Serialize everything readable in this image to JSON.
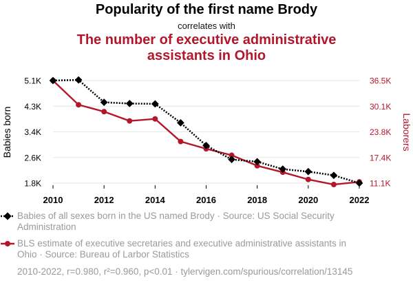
{
  "header": {
    "title": "Popularity of the first name Brody",
    "correlates": "correlates with",
    "title2_line1": "The number of executive administrative",
    "title2_line2": "assistants in Ohio"
  },
  "colors": {
    "series1": "#000000",
    "series2": "#b4162b",
    "grid": "#e6e6e6",
    "legend_text": "#9a9a9a"
  },
  "chart_data": {
    "type": "line",
    "x": [
      2010,
      2011,
      2012,
      2013,
      2014,
      2015,
      2016,
      2017,
      2018,
      2019,
      2020,
      2021,
      2022
    ],
    "xlim": [
      2010,
      2022
    ],
    "x_ticks": [
      "2010",
      "2012",
      "2014",
      "2016",
      "2018",
      "2020",
      "2022"
    ],
    "y_left": {
      "label": "Babies born",
      "ylim": [
        1800,
        5100
      ],
      "ticks": [
        "5.1K",
        "4.3K",
        "3.4K",
        "2.6K",
        "1.8K"
      ]
    },
    "y_right": {
      "label": "Laborers",
      "ylim": [
        11100,
        36500
      ],
      "ticks": [
        "36.5K",
        "30.1K",
        "23.8K",
        "17.4K",
        "11.1K"
      ]
    },
    "series": [
      {
        "name": "Babies of all sexes born in the US named Brody",
        "axis": "left",
        "marker": "diamond",
        "style": "dotted",
        "values": [
          5100,
          5120,
          4400,
          4360,
          4350,
          3740,
          3010,
          2560,
          2490,
          2250,
          2170,
          2050,
          1800
        ]
      },
      {
        "name": "BLS estimate of executive secretaries and executive administrative assistants in Ohio",
        "axis": "right",
        "marker": "circle",
        "style": "solid",
        "values": [
          36500,
          30500,
          28800,
          26500,
          27000,
          21400,
          19600,
          18000,
          15400,
          13800,
          12000,
          10750,
          11400
        ]
      }
    ]
  },
  "legend": {
    "item1_line1": "Babies of all sexes born in the US named Brody · Source: US Social Security",
    "item1_line2": "Administration",
    "item2_line1": "BLS estimate of executive secretaries and executive administrative assistants in",
    "item2_line2": "Ohio · Source: Bureau of Larbor Statistics"
  },
  "footer": "2010-2022, r=0.980, r²=0.960, p<0.01 · tylervigen.com/spurious/correlation/13145"
}
